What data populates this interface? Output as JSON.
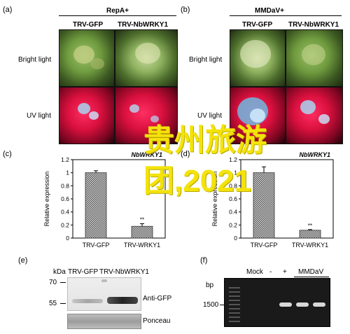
{
  "panels": {
    "a": "(a)",
    "b": "(b)",
    "c": "(c)",
    "d": "(d)",
    "e": "(e)",
    "f": "(f)"
  },
  "panel_a": {
    "virus": "RepA+",
    "col1": "TRV-GFP",
    "col2": "TRV-NbWRKY1",
    "row1": "Bright light",
    "row2": "UV light"
  },
  "panel_b": {
    "virus": "MMDaV+",
    "col1": "TRV-GFP",
    "col2": "TRV-NbWRKY1",
    "row1": "Bright light",
    "row2": "UV light"
  },
  "overlay_text": "贵州旅游团,2021",
  "panel_e": {
    "kda": "kDa",
    "col1": "TRV-GFP",
    "col2": "TRV-NbWRKY1",
    "marker_70": "70",
    "marker_55": "55",
    "anti_gfp": "Anti-GFP",
    "ponceau": "Ponceau"
  },
  "panel_f": {
    "bp": "bp",
    "mock": "Mock",
    "minus": "-",
    "plus": "+",
    "mmdav": "MMDaV",
    "marker_1500": "1500"
  },
  "chart_data": [
    {
      "type": "bar",
      "panel": "c",
      "title_fragment": "NbWRKY1",
      "categories": [
        "TRV-GFP",
        "TRV-WRKY1"
      ],
      "values": [
        1.0,
        0.18
      ],
      "errors": [
        0.03,
        0.04
      ],
      "annotations": [
        "",
        "**"
      ],
      "ylabel": "Relative expression",
      "ylim": [
        0,
        1.2
      ],
      "yticks": [
        "0",
        "0.2",
        "0.4",
        "0.6",
        "0.8",
        "1",
        "1.2"
      ]
    },
    {
      "type": "bar",
      "panel": "d",
      "title_fragment": "NbWRKY1",
      "categories": [
        "TRV-GFP",
        "TRV-WRKY1"
      ],
      "values": [
        1.0,
        0.12
      ],
      "errors": [
        0.09,
        0.01
      ],
      "annotations": [
        "",
        "**"
      ],
      "ylabel": "Relative expression",
      "ylim": [
        0,
        1.2
      ],
      "yticks": [
        "0",
        "0.2",
        "0.4",
        "0.6",
        "0.8",
        "1",
        "1.2"
      ]
    }
  ]
}
